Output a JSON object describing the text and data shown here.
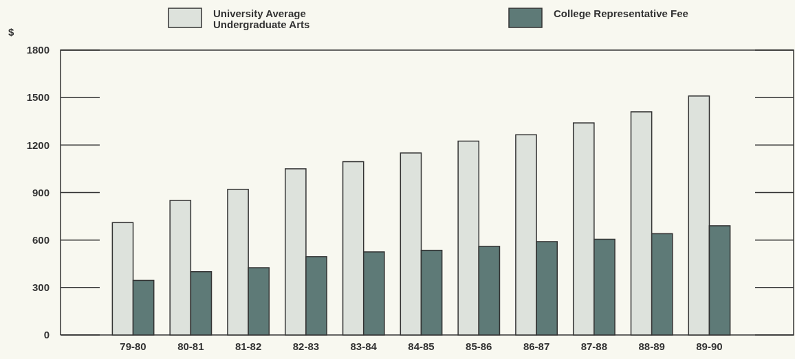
{
  "chart_data": {
    "type": "bar",
    "ylabel": "$",
    "categories": [
      "79-80",
      "80-81",
      "81-82",
      "82-83",
      "83-84",
      "84-85",
      "85-86",
      "86-87",
      "87-88",
      "88-89",
      "89-90"
    ],
    "series": [
      {
        "name": "University Average\nUndergraduate Arts",
        "color": "#dde2dc",
        "values": [
          710,
          850,
          920,
          1050,
          1095,
          1150,
          1225,
          1265,
          1340,
          1410,
          1510
        ]
      },
      {
        "name": "College Representative Fee",
        "color": "#5e7a77",
        "values": [
          345,
          400,
          425,
          495,
          525,
          535,
          560,
          590,
          605,
          640,
          690
        ]
      }
    ],
    "ylim": [
      0,
      1800
    ],
    "yticks": [
      0,
      300,
      600,
      900,
      1200,
      1500,
      1800
    ],
    "legend": "top"
  }
}
